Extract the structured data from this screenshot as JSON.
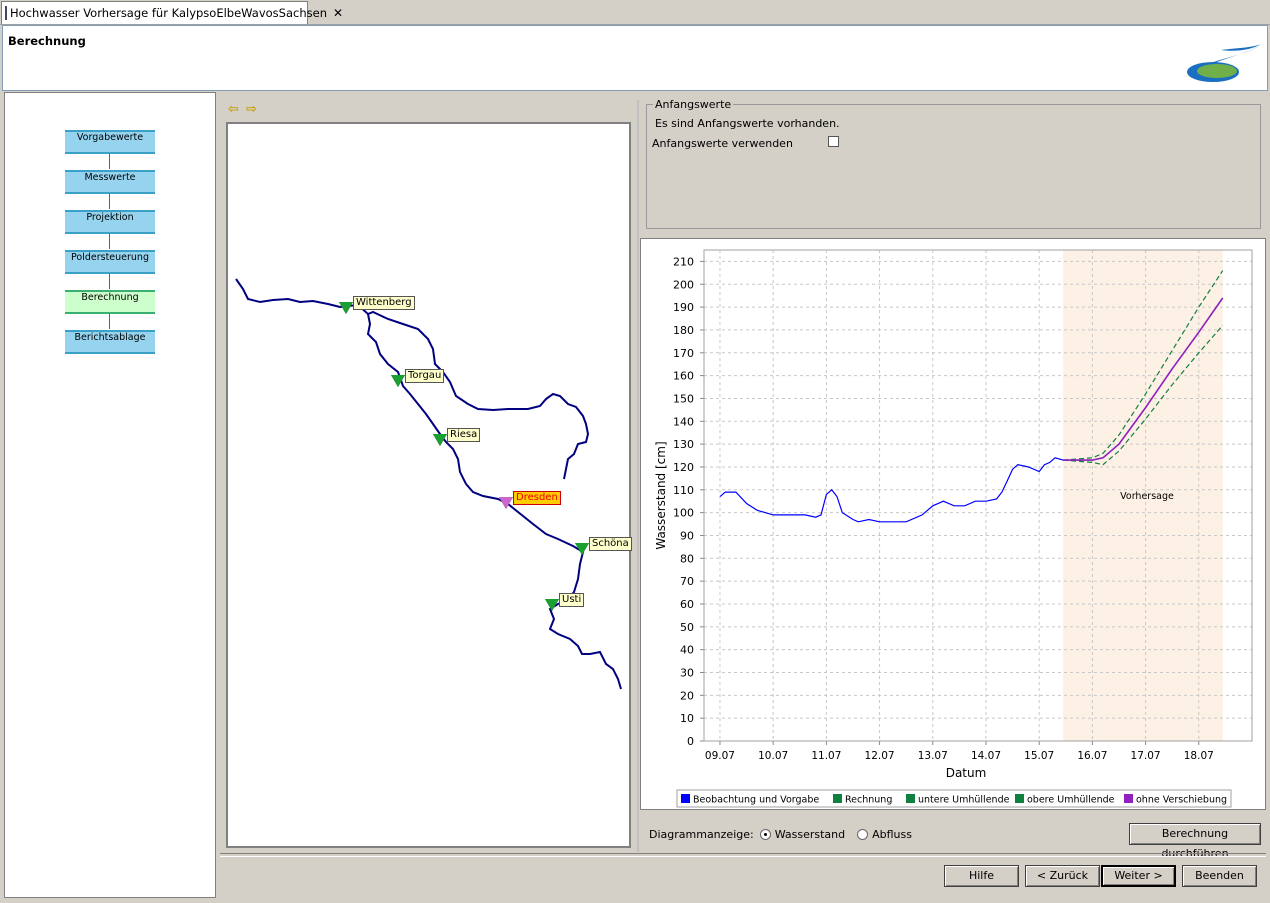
{
  "tab": {
    "title": "Hochwasser Vorhersage für KalypsoElbeWavosSachsen",
    "close": "✕"
  },
  "header": {
    "page_title": "Berechnung"
  },
  "steps": [
    {
      "label": "Vorgabewerte",
      "active": false
    },
    {
      "label": "Messwerte",
      "active": false
    },
    {
      "label": "Projektion",
      "active": false
    },
    {
      "label": "Poldersteuerung",
      "active": false
    },
    {
      "label": "Berechnung",
      "active": true
    },
    {
      "label": "Berichtsablage",
      "active": false
    }
  ],
  "map": {
    "back_icon": "arrow-left-icon",
    "forward_icon": "arrow-right-icon",
    "river_color": "#000080",
    "stations": [
      {
        "name": "Wittenberg",
        "selected": false
      },
      {
        "name": "Torgau",
        "selected": false
      },
      {
        "name": "Riesa",
        "selected": false
      },
      {
        "name": "Dresden",
        "selected": true
      },
      {
        "name": "Schöna",
        "selected": false
      },
      {
        "name": "Usti",
        "selected": false
      }
    ]
  },
  "anfangswerte": {
    "group_title": "Anfangswerte",
    "info": "Es sind Anfangswerte vorhanden.",
    "checkbox_label": "Anfangswerte verwenden",
    "checked": false
  },
  "chart_data": {
    "type": "line",
    "xlabel": "Datum",
    "ylabel": "Wasserstand [cm]",
    "ylim": [
      0,
      215
    ],
    "xlim": [
      8.7,
      19.0
    ],
    "yticks": [
      0,
      10,
      20,
      30,
      40,
      50,
      60,
      70,
      80,
      90,
      100,
      110,
      120,
      130,
      140,
      150,
      160,
      170,
      180,
      190,
      200,
      210
    ],
    "xticks": [
      {
        "v": 9.0,
        "label": "09.07"
      },
      {
        "v": 10.0,
        "label": "10.07"
      },
      {
        "v": 11.0,
        "label": "11.07"
      },
      {
        "v": 12.0,
        "label": "12.07"
      },
      {
        "v": 13.0,
        "label": "13.07"
      },
      {
        "v": 14.0,
        "label": "14.07"
      },
      {
        "v": 15.0,
        "label": "15.07"
      },
      {
        "v": 16.0,
        "label": "16.07"
      },
      {
        "v": 17.0,
        "label": "17.07"
      },
      {
        "v": 18.0,
        "label": "18.07"
      }
    ],
    "grid": true,
    "forecast_region": {
      "from": 15.45,
      "to": 18.45,
      "label": "Vorhersage",
      "color": "#fdf0e4"
    },
    "series": [
      {
        "name": "Beobachtung und Vorgabe",
        "color": "#0000ff",
        "dash": "",
        "x": [
          9.0,
          9.1,
          9.3,
          9.5,
          9.7,
          10.0,
          10.3,
          10.6,
          10.8,
          10.9,
          11.0,
          11.1,
          11.2,
          11.3,
          11.5,
          11.6,
          11.8,
          12.0,
          12.2,
          12.5,
          12.8,
          13.0,
          13.2,
          13.4,
          13.6,
          13.8,
          14.0,
          14.2,
          14.3,
          14.4,
          14.5,
          14.6,
          14.8,
          15.0,
          15.1,
          15.2,
          15.3,
          15.45
        ],
        "y": [
          107,
          109,
          109,
          104,
          101,
          99,
          99,
          99,
          98,
          99,
          108,
          110,
          107,
          100,
          97,
          96,
          97,
          96,
          96,
          96,
          99,
          103,
          105,
          103,
          103,
          105,
          105,
          106,
          109,
          114,
          119,
          121,
          120,
          118,
          121,
          122,
          124,
          123
        ]
      },
      {
        "name": "Rechnung",
        "color": "#108040",
        "dash": "",
        "x": [
          15.45,
          16.0,
          16.2,
          16.5,
          17.0,
          17.5,
          18.0,
          18.45
        ],
        "y": [
          123,
          123,
          124,
          130,
          146,
          163,
          179,
          194
        ]
      },
      {
        "name": "untere Umhüllende",
        "color": "#108040",
        "dash": "5,3",
        "x": [
          15.45,
          16.0,
          16.2,
          16.5,
          17.0,
          17.5,
          18.0,
          18.45
        ],
        "y": [
          123,
          122,
          121,
          127,
          141,
          156,
          170,
          182
        ]
      },
      {
        "name": "obere Umhüllende",
        "color": "#108040",
        "dash": "5,3",
        "x": [
          15.45,
          16.0,
          16.2,
          16.5,
          17.0,
          17.5,
          18.0,
          18.45
        ],
        "y": [
          123,
          124,
          126,
          134,
          152,
          171,
          190,
          206
        ]
      },
      {
        "name": "ohne Verschiebung",
        "color": "#9020c0",
        "dash": "",
        "x": [
          15.45,
          16.0,
          16.2,
          16.5,
          17.0,
          17.5,
          18.0,
          18.45
        ],
        "y": [
          123,
          123,
          124,
          130,
          146,
          163,
          179,
          194
        ]
      }
    ]
  },
  "display": {
    "label": "Diagrammanzeige:",
    "options": [
      {
        "label": "Wasserstand",
        "selected": true
      },
      {
        "label": "Abfluss",
        "selected": false
      }
    ]
  },
  "buttons": {
    "run": "Berechnung durchführen",
    "help": "Hilfe",
    "back": "< Zurück",
    "next": "Weiter >",
    "finish": "Beenden"
  }
}
